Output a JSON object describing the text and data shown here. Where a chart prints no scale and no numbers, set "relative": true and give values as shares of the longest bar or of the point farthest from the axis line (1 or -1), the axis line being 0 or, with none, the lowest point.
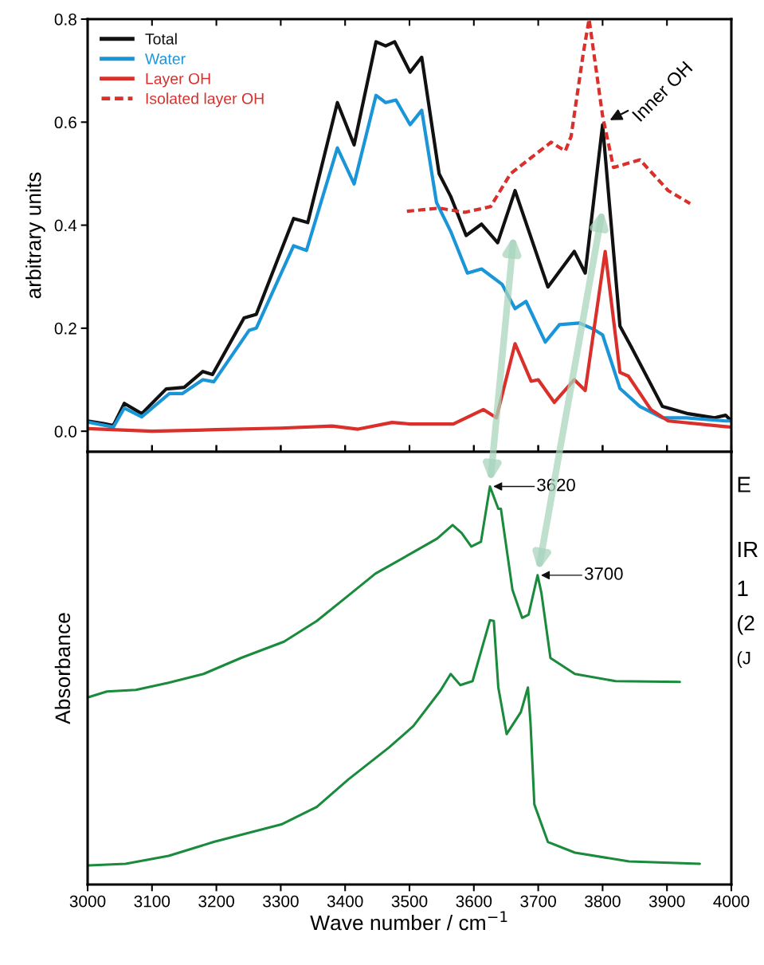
{
  "chart_data": [
    {
      "type": "line",
      "ylabel": "arbitrary units",
      "xlim": [
        3000,
        4000
      ],
      "xticks": [
        3000,
        3100,
        3200,
        3300,
        3400,
        3500,
        3600,
        3700,
        3800,
        3900,
        4000
      ],
      "ylim": [
        -0.04,
        0.8
      ],
      "yticks": [
        {
          "value": 0,
          "label": "0.0"
        },
        0.2,
        0.4,
        0.6,
        0.8
      ],
      "tick_labels": "y",
      "legend": "top left",
      "annotations": [
        {
          "text": "Inner OH",
          "x": 3805,
          "y": 0.6
        }
      ],
      "series": [
        {
          "name": "Total",
          "color": "#111111",
          "x": [
            3000,
            3025,
            3040,
            3057,
            3084,
            3122,
            3150,
            3179,
            3194,
            3243,
            3262,
            3320,
            3342,
            3388,
            3414,
            3448,
            3463,
            3477,
            3501,
            3519,
            3546,
            3564,
            3588,
            3612,
            3637,
            3664,
            3715,
            3756,
            3773,
            3800,
            3827,
            3844,
            3893,
            3933,
            3974,
            3991,
            4000
          ],
          "values": [
            0.02,
            0.015,
            0.011,
            0.054,
            0.034,
            0.082,
            0.085,
            0.116,
            0.11,
            0.22,
            0.227,
            0.413,
            0.405,
            0.638,
            0.556,
            0.756,
            0.748,
            0.756,
            0.697,
            0.726,
            0.5,
            0.456,
            0.38,
            0.402,
            0.366,
            0.467,
            0.28,
            0.349,
            0.307,
            0.595,
            0.204,
            0.165,
            0.048,
            0.034,
            0.026,
            0.031,
            0.02
          ]
        },
        {
          "name": "Water",
          "color": "#1a96d8",
          "x": [
            3000,
            3040,
            3057,
            3084,
            3127,
            3147,
            3179,
            3196,
            3251,
            3262,
            3320,
            3340,
            3388,
            3414,
            3448,
            3463,
            3479,
            3501,
            3519,
            3542,
            3564,
            3590,
            3612,
            3644,
            3664,
            3681,
            3711,
            3733,
            3764,
            3786,
            3800,
            3827,
            3858,
            3893,
            3930,
            3991,
            4000
          ],
          "values": [
            0.018,
            0.008,
            0.045,
            0.028,
            0.073,
            0.073,
            0.1,
            0.096,
            0.196,
            0.2,
            0.36,
            0.351,
            0.55,
            0.48,
            0.652,
            0.638,
            0.643,
            0.595,
            0.623,
            0.444,
            0.388,
            0.307,
            0.315,
            0.285,
            0.238,
            0.252,
            0.173,
            0.207,
            0.21,
            0.198,
            0.187,
            0.083,
            0.048,
            0.026,
            0.026,
            0.02,
            0.02
          ]
        },
        {
          "name": "Layer OH",
          "color": "#d9302c",
          "x": [
            3000,
            3100,
            3200,
            3300,
            3380,
            3420,
            3473,
            3501,
            3568,
            3615,
            3635,
            3664,
            3689,
            3700,
            3725,
            3756,
            3773,
            3804,
            3827,
            3840,
            3875,
            3902,
            3991,
            4000
          ],
          "values": [
            0.005,
            0.0,
            0.003,
            0.006,
            0.01,
            0.004,
            0.017,
            0.014,
            0.014,
            0.042,
            0.026,
            0.17,
            0.097,
            0.1,
            0.056,
            0.1,
            0.079,
            0.349,
            0.114,
            0.107,
            0.042,
            0.02,
            0.009,
            0.008
          ]
        },
        {
          "name": "Isolated layer OH",
          "color": "#d9302c",
          "line_style": "dashed",
          "x": [
            3496,
            3546,
            3586,
            3626,
            3657,
            3720,
            3742,
            3751,
            3770,
            3779,
            3800,
            3817,
            3858,
            3902,
            3936
          ],
          "values": [
            0.427,
            0.433,
            0.425,
            0.436,
            0.5,
            0.561,
            0.544,
            0.572,
            0.734,
            0.8,
            0.612,
            0.512,
            0.527,
            0.467,
            0.442
          ]
        }
      ]
    },
    {
      "type": "line",
      "relative": true,
      "xlabel": "Wave number / cm$^{−1}$",
      "ylabel": "Absorbance",
      "xlim": [
        3000,
        4000
      ],
      "xticks": [
        3000,
        3100,
        3200,
        3300,
        3400,
        3500,
        3600,
        3700,
        3800,
        3900,
        4000
      ],
      "tick_labels": "x",
      "annotations": [
        {
          "text": "3620",
          "x": 3625,
          "y": 1
        },
        {
          "text": "3700",
          "x": 3699,
          "y": 0.777
        },
        "E",
        "IR",
        "1",
        "(2",
        "(J"
      ],
      "series": [
        {
          "color": "#1a8a3c",
          "x": [
            3002,
            3030,
            3075,
            3126,
            3180,
            3238,
            3305,
            3356,
            3405,
            3447,
            3506,
            3543,
            3567,
            3581,
            3596,
            3611,
            3625,
            3631,
            3638,
            3642,
            3660,
            3675,
            3685,
            3699,
            3705,
            3719,
            3757,
            3820,
            3920
          ],
          "values": [
            0.471,
            0.485,
            0.489,
            0.507,
            0.529,
            0.569,
            0.61,
            0.662,
            0.726,
            0.781,
            0.835,
            0.869,
            0.903,
            0.883,
            0.849,
            0.861,
            1,
            0.974,
            0.944,
            0.944,
            0.74,
            0.67,
            0.678,
            0.777,
            0.732,
            0.569,
            0.529,
            0.511,
            0.509
          ]
        },
        {
          "color": "#1a8a3c",
          "x": [
            3002,
            3059,
            3126,
            3196,
            3301,
            3356,
            3405,
            3468,
            3506,
            3548,
            3564,
            3579,
            3598,
            3625,
            3631,
            3638,
            3651,
            3673,
            3684,
            3688,
            3694,
            3715,
            3757,
            3841,
            3951
          ],
          "values": [
            0.048,
            0.052,
            0.072,
            0.107,
            0.151,
            0.195,
            0.264,
            0.344,
            0.398,
            0.487,
            0.529,
            0.501,
            0.511,
            0.664,
            0.662,
            0.495,
            0.378,
            0.433,
            0.495,
            0.406,
            0.201,
            0.107,
            0.08,
            0.058,
            0.052
          ]
        }
      ]
    }
  ]
}
